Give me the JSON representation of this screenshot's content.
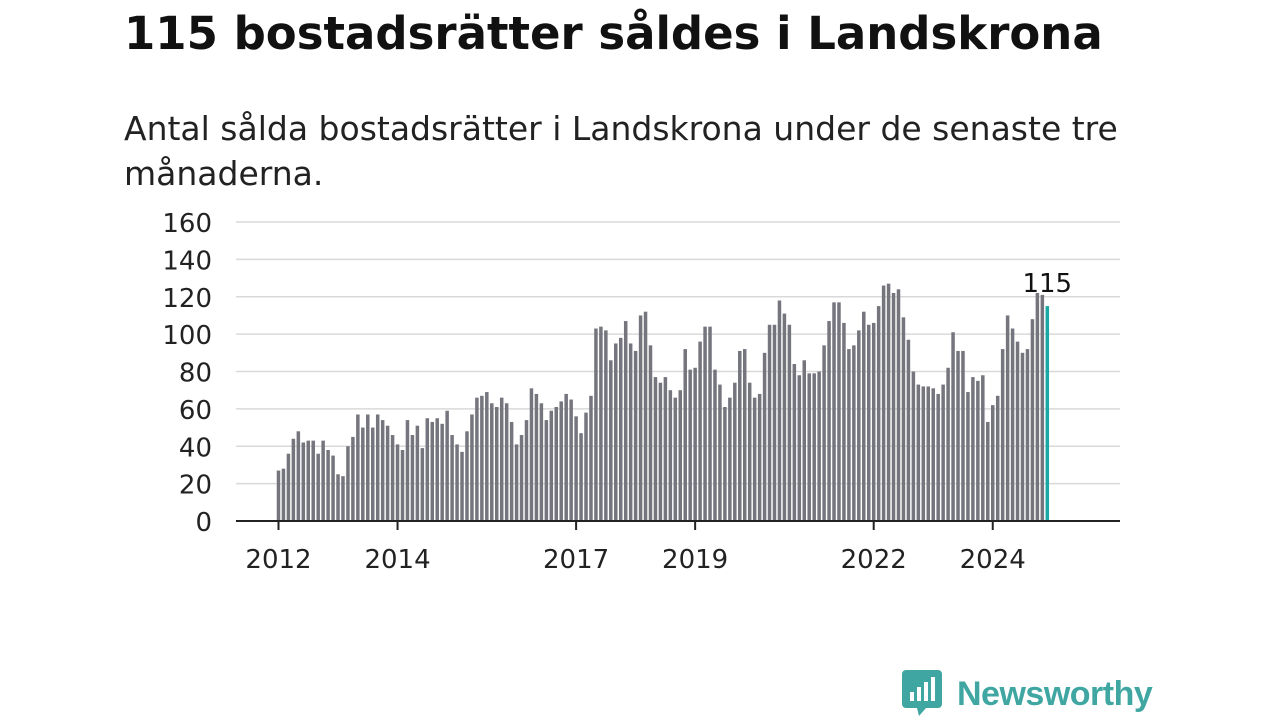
{
  "title": "115 bostadsrätter såldes i Landskrona",
  "subtitle": "Antal sålda bostadsrätter i Landskrona under de senaste tre månaderna.",
  "logo": {
    "icon": "newsworthy-logo-icon",
    "text": "Newsworthy",
    "color": "#3fa6a1"
  },
  "colors": {
    "bar": "#75757e",
    "highlight": "#1aa8a4",
    "grid": "#d9d9d9",
    "axis": "#222222",
    "text": "#222222"
  },
  "chart_data": {
    "type": "bar",
    "title": "115 bostadsrätter såldes i Landskrona",
    "subtitle": "Antal sålda bostadsrätter i Landskrona under de senaste tre månaderna.",
    "xlabel": "",
    "ylabel": "",
    "ylim": [
      0,
      160
    ],
    "yticks": [
      0,
      20,
      40,
      60,
      80,
      100,
      120,
      140,
      160
    ],
    "xticks": [
      "2012",
      "2014",
      "2017",
      "2019",
      "2022",
      "2024"
    ],
    "grid": true,
    "legend": "none",
    "start": "2012-01",
    "end": "2024-12",
    "frequency": "monthly",
    "highlight_label": "115",
    "series": [
      {
        "values": [
          27,
          28,
          36,
          44,
          48,
          42,
          43,
          43,
          36,
          43,
          38,
          35,
          25,
          24,
          40,
          45,
          57,
          50,
          57,
          50,
          57,
          54,
          51,
          46,
          41,
          38,
          54,
          46,
          51,
          39,
          55,
          53,
          55,
          52,
          59,
          46,
          41,
          37,
          48,
          57,
          66,
          67,
          69,
          63,
          61,
          66,
          63,
          53,
          41,
          46,
          54,
          71,
          68,
          63,
          54,
          59,
          61,
          64,
          68,
          65,
          56,
          47,
          58,
          67,
          103,
          104,
          102,
          86,
          95,
          98,
          107,
          95,
          91,
          110,
          112,
          94,
          77,
          74,
          77,
          70,
          66,
          70,
          92,
          81,
          82,
          96,
          104,
          104,
          81,
          73,
          61,
          66,
          74,
          91,
          92,
          74,
          66,
          68,
          90,
          105,
          105,
          118,
          111,
          105,
          84,
          78,
          86,
          79,
          79,
          80,
          94,
          107,
          117,
          117,
          106,
          92,
          94,
          102,
          112,
          105,
          106,
          115,
          126,
          127,
          122,
          124,
          109,
          97,
          80,
          73,
          72,
          72,
          71,
          68,
          73,
          82,
          101,
          91,
          91,
          69,
          77,
          75,
          78,
          53,
          62,
          67,
          92,
          110,
          103,
          96,
          90,
          92,
          108,
          122,
          121,
          115
        ]
      }
    ]
  }
}
